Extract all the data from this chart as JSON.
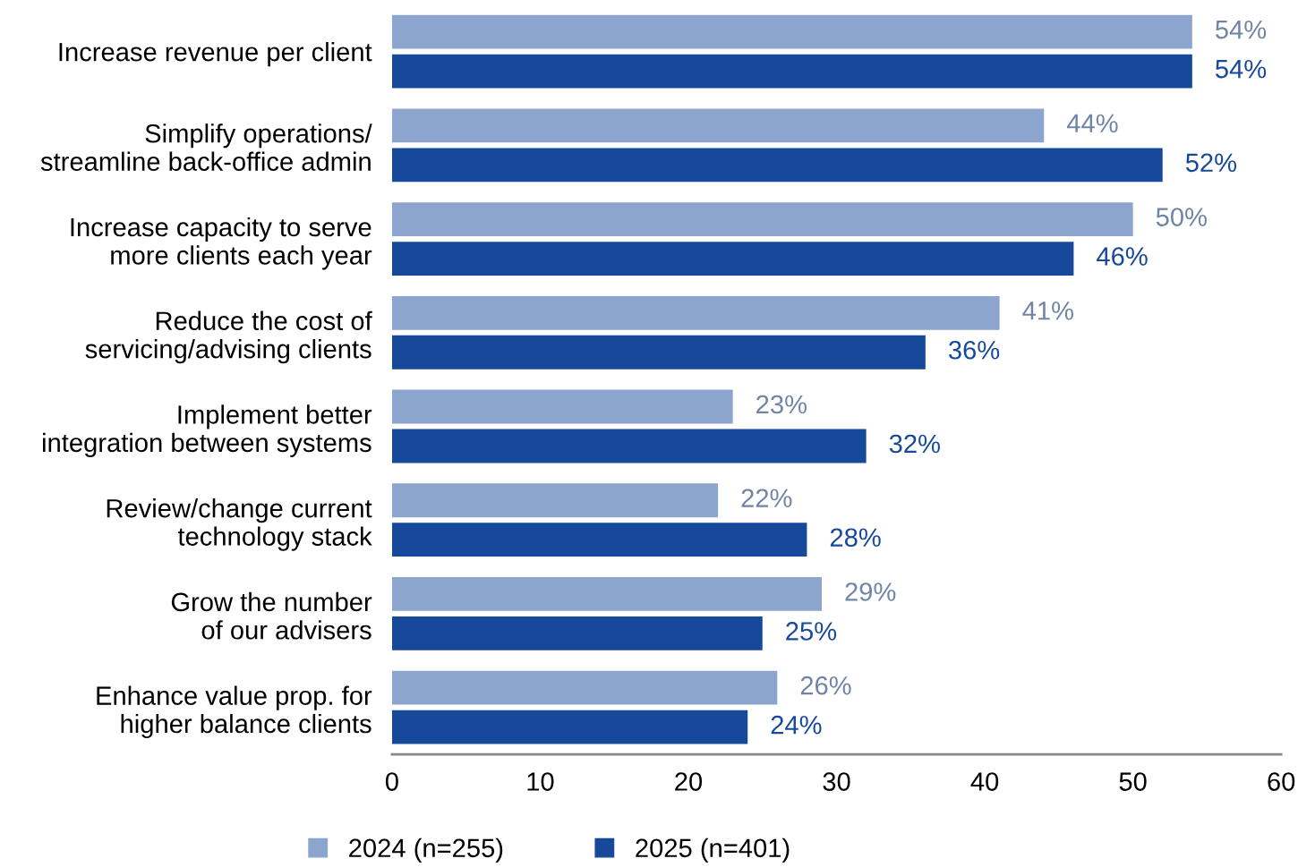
{
  "chart_data": {
    "type": "bar",
    "orientation": "horizontal",
    "categories": [
      "Increase revenue per client",
      "Simplify operations/\nstreamline back-office admin",
      "Increase capacity to serve\nmore clients each year",
      "Reduce the cost of\nservicing/advising clients",
      "Implement better\nintegration between systems",
      "Review/change current\ntechnology stack",
      "Grow the number\nof our advisers",
      "Enhance value prop. for\nhigher balance clients"
    ],
    "series": [
      {
        "name": "2024 (n=255)",
        "color": "#8ba5cf",
        "values": [
          54,
          44,
          50,
          41,
          23,
          22,
          29,
          26
        ],
        "value_labels": [
          "54%",
          "44%",
          "50%",
          "41%",
          "23%",
          "22%",
          "29%",
          "26%"
        ]
      },
      {
        "name": "2025 (n=401)",
        "color": "#17499a",
        "values": [
          54,
          52,
          46,
          36,
          32,
          28,
          25,
          24
        ],
        "value_labels": [
          "54%",
          "52%",
          "46%",
          "36%",
          "32%",
          "28%",
          "25%",
          "24%"
        ]
      }
    ],
    "xlim": [
      0,
      60
    ],
    "xticks": [
      0,
      10,
      20,
      30,
      40,
      50,
      60
    ],
    "grid": false,
    "legend": "bottom"
  }
}
